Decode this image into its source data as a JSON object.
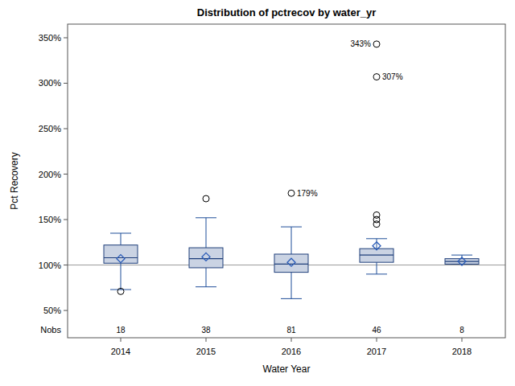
{
  "chart_data": {
    "type": "box",
    "title": "Distribution of pctrecov by water_yr",
    "x_label": "Water Year",
    "y_label": "Pct Recovery",
    "categories": [
      "2014",
      "2015",
      "2016",
      "2017",
      "2018"
    ],
    "color": "#cad3e3",
    "nobs_label": "Nobs",
    "boxes": [
      {
        "whisker_low": 73,
        "q1": 102,
        "median": 108,
        "q3": 122,
        "whisker_high": 135,
        "mean": 107,
        "outliers": [
          71
        ],
        "outlier_labels": [
          null
        ],
        "nobs": 18
      },
      {
        "whisker_low": 76,
        "q1": 97,
        "median": 107,
        "q3": 119,
        "whisker_high": 152,
        "mean": 109,
        "outliers": [
          173
        ],
        "outlier_labels": [
          null
        ],
        "nobs": 38
      },
      {
        "whisker_low": 63,
        "q1": 92,
        "median": 101,
        "q3": 112,
        "whisker_high": 142,
        "mean": 103,
        "outliers": [
          179
        ],
        "outlier_labels": [
          "179%"
        ],
        "nobs": 81
      },
      {
        "whisker_low": 90,
        "q1": 103,
        "median": 111,
        "q3": 118,
        "whisker_high": 129,
        "mean": 121,
        "outliers": [
          343,
          307,
          155,
          150,
          145
        ],
        "outlier_labels": [
          "343%",
          "307%",
          null,
          null,
          null
        ],
        "nobs": 46
      },
      {
        "whisker_low": 101,
        "q1": 101,
        "median": 104,
        "q3": 107,
        "whisker_high": 111,
        "mean": 104,
        "outliers": [],
        "outlier_labels": [],
        "nobs": 8
      }
    ],
    "reference_line": 100,
    "ylim": [
      20,
      365
    ],
    "yticks": [
      {
        "value": 50,
        "label": "50%"
      },
      {
        "value": 100,
        "label": "100%"
      },
      {
        "value": 150,
        "label": "150%"
      },
      {
        "value": 200,
        "label": "200%"
      },
      {
        "value": 250,
        "label": "250%"
      },
      {
        "value": 300,
        "label": "300%"
      },
      {
        "value": 350,
        "label": "350%"
      }
    ]
  }
}
